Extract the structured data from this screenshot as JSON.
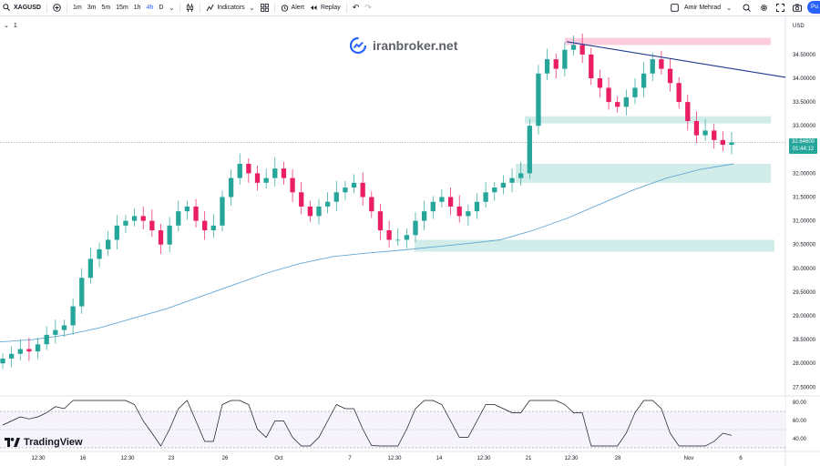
{
  "toolbar": {
    "symbol": "XAGUSD",
    "intervals": [
      "1m",
      "3m",
      "5m",
      "15m",
      "1h",
      "4h",
      "D"
    ],
    "active_interval": "4h",
    "indicators_label": "Indicators",
    "alert_label": "Alert",
    "replay_label": "Replay",
    "user_name": "Amir Mehrad",
    "publish_label": "Pu"
  },
  "pane_collapse_label": "1",
  "watermark": "iranbroker.net",
  "branding": "TradingView",
  "price_label": {
    "price": "32.64600",
    "countdown": "01:44:12"
  },
  "colors": {
    "up": "#26a69a",
    "down": "#e91e63",
    "ma": "#64a8d6",
    "trendline": "#1f3a93",
    "zone_green": "#b2dfdb",
    "zone_red": "#f8bbd0",
    "rsi_line": "#131722"
  },
  "chart_data": {
    "type": "candlestick",
    "currency": "USD",
    "y_ticks": [
      "34.50000",
      "34.00000",
      "33.50000",
      "33.00000",
      "32.50000",
      "32.00000",
      "31.50000",
      "31.00000",
      "30.50000",
      "30.00000",
      "29.50000",
      "29.00000",
      "28.50000",
      "28.00000",
      "27.50000"
    ],
    "ylim": [
      27.4,
      35.05
    ],
    "x_tick_labels": [
      "12:30",
      "16",
      "12:30",
      "23",
      "26",
      "Oct",
      "7",
      "12:30",
      "14",
      "12:30",
      "21",
      "12:30",
      "28",
      "Nov",
      "6"
    ],
    "close_series": [
      28.1,
      28.2,
      28.3,
      28.25,
      28.4,
      28.6,
      28.7,
      28.8,
      29.2,
      29.8,
      30.2,
      30.4,
      30.6,
      30.9,
      31.0,
      31.1,
      31.0,
      30.8,
      30.5,
      30.9,
      31.2,
      31.3,
      31.0,
      30.8,
      30.9,
      31.5,
      31.9,
      32.2,
      32.0,
      31.8,
      31.9,
      32.1,
      31.9,
      31.6,
      31.3,
      31.1,
      31.3,
      31.4,
      31.6,
      31.7,
      31.8,
      31.5,
      31.2,
      30.8,
      30.6,
      30.6,
      30.7,
      31.0,
      31.2,
      31.4,
      31.5,
      31.3,
      31.1,
      31.2,
      31.4,
      31.6,
      31.7,
      31.8,
      31.9,
      32.0,
      33.0,
      34.1,
      34.4,
      34.2,
      34.6,
      34.7,
      34.5,
      34.0,
      33.8,
      33.5,
      33.4,
      33.6,
      33.8,
      34.1,
      34.4,
      34.2,
      33.9,
      33.5,
      33.1,
      32.8,
      32.9,
      32.7,
      32.6,
      32.65
    ],
    "ma200": [
      28.45,
      28.5,
      28.6,
      28.75,
      28.95,
      29.15,
      29.4,
      29.65,
      29.9,
      30.1,
      30.25,
      30.32,
      30.38,
      30.45,
      30.52,
      30.6,
      30.8,
      31.05,
      31.35,
      31.65,
      31.9,
      32.08,
      32.2
    ],
    "zones": [
      {
        "color": "red",
        "from": 34.7,
        "to": 34.85
      },
      {
        "color": "green",
        "from": 33.05,
        "to": 33.2
      },
      {
        "color": "green",
        "from": 31.8,
        "to": 32.2
      },
      {
        "color": "green",
        "from": 30.35,
        "to": 30.6
      }
    ],
    "trendline": {
      "from_price": 34.77,
      "to_price": 34.02
    },
    "rsi": {
      "levels": [
        70,
        30
      ],
      "y_ticks": [
        "80.00",
        "60.00",
        "40.00"
      ]
    }
  }
}
